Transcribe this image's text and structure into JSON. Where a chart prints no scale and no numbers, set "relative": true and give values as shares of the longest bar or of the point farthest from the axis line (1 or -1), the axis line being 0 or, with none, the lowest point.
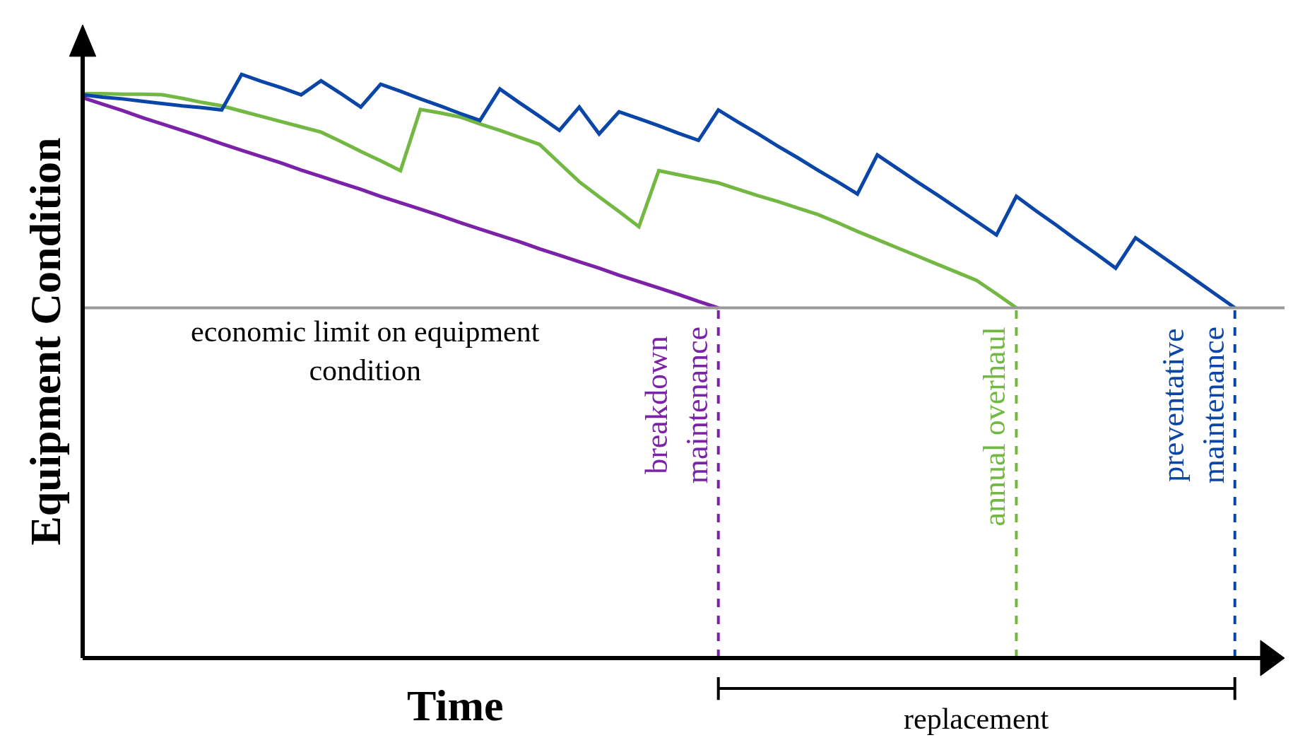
{
  "chart_data": {
    "type": "line",
    "relative": true,
    "xlabel": "Time",
    "ylabel": "Equipment Condition",
    "marker": "none",
    "line_style": "solid",
    "categories": [
      null,
      null,
      null,
      null,
      null,
      null,
      null,
      null,
      null,
      null,
      null,
      null,
      null,
      null,
      null,
      null,
      null,
      null,
      null,
      null,
      null,
      null,
      null,
      null,
      null,
      null,
      null,
      null,
      null,
      null,
      null,
      null,
      null,
      null,
      null,
      null,
      null,
      null,
      null,
      null,
      null,
      null,
      null,
      null,
      null,
      null,
      null,
      null,
      null,
      null,
      null,
      null,
      null,
      null,
      null,
      null,
      null,
      null,
      null,
      null,
      null
    ],
    "series": [
      {
        "color": "#7b22a8",
        "values": [
          0.96,
          0.949,
          0.938,
          0.926,
          0.915,
          0.904,
          0.893,
          0.881,
          0.87,
          0.859,
          0.848,
          0.836,
          0.825,
          0.814,
          0.803,
          0.791,
          0.78,
          0.769,
          0.758,
          0.746,
          0.735,
          0.724,
          0.713,
          0.701,
          0.69,
          0.679,
          0.668,
          0.656,
          0.645,
          0.634,
          0.623,
          0.611,
          0.6,
          null,
          null,
          null,
          null,
          null,
          null,
          null,
          null,
          null,
          null,
          null,
          null,
          null,
          null,
          null,
          null,
          null,
          null,
          null,
          null,
          null,
          null,
          null,
          null,
          null,
          null,
          null,
          null
        ]
      },
      {
        "color": "#72b843",
        "values": [
          0.967,
          0.967,
          0.966,
          0.966,
          0.965,
          0.959,
          0.952,
          0.946,
          0.937,
          0.928,
          0.919,
          0.91,
          0.901,
          0.885,
          0.868,
          0.852,
          0.835,
          0.94,
          0.934,
          0.927,
          0.915,
          0.904,
          0.892,
          0.88,
          0.848,
          0.816,
          0.79,
          0.765,
          0.739,
          0.835,
          0.828,
          0.821,
          0.814,
          0.803,
          0.792,
          0.782,
          0.771,
          0.76,
          0.746,
          0.731,
          0.717,
          0.703,
          0.689,
          0.675,
          0.661,
          0.647,
          0.624,
          0.6,
          null,
          null,
          null,
          null,
          null,
          null,
          null,
          null,
          null,
          null,
          null,
          null,
          null
        ]
      },
      {
        "color": "#0a45a8",
        "values": [
          0.965,
          0.961,
          0.958,
          0.954,
          0.95,
          0.946,
          0.943,
          0.939,
          1.0,
          0.988,
          0.977,
          0.965,
          0.989,
          0.967,
          0.944,
          0.983,
          0.971,
          0.958,
          0.946,
          0.933,
          0.921,
          0.975,
          0.951,
          0.928,
          0.904,
          0.944,
          0.898,
          0.936,
          0.924,
          0.912,
          0.899,
          0.887,
          0.939,
          0.918,
          0.898,
          0.877,
          0.857,
          0.836,
          0.816,
          0.795,
          0.862,
          0.839,
          0.816,
          0.794,
          0.771,
          0.748,
          0.725,
          0.791,
          0.766,
          0.742,
          0.717,
          0.693,
          0.668,
          0.72,
          0.696,
          0.672,
          0.648,
          0.624,
          0.6,
          null,
          null
        ]
      }
    ],
    "ref_lines": [
      {
        "axis": "y",
        "value": 0.6,
        "label": "economic limit on equipment\ncondition",
        "color": "#999999",
        "line_style": "solid"
      },
      {
        "axis": "x",
        "label": "breakdown\nmaintenance",
        "color": "#7b22a8",
        "line_style": "dashed"
      },
      {
        "axis": "x",
        "label": "annual overhaul",
        "color": "#72b843",
        "line_style": "dashed"
      },
      {
        "axis": "x",
        "label": "preventative\nmaintenance",
        "color": "#0a45a8",
        "line_style": "dashed"
      }
    ],
    "annotations": [
      "replacement"
    ]
  }
}
